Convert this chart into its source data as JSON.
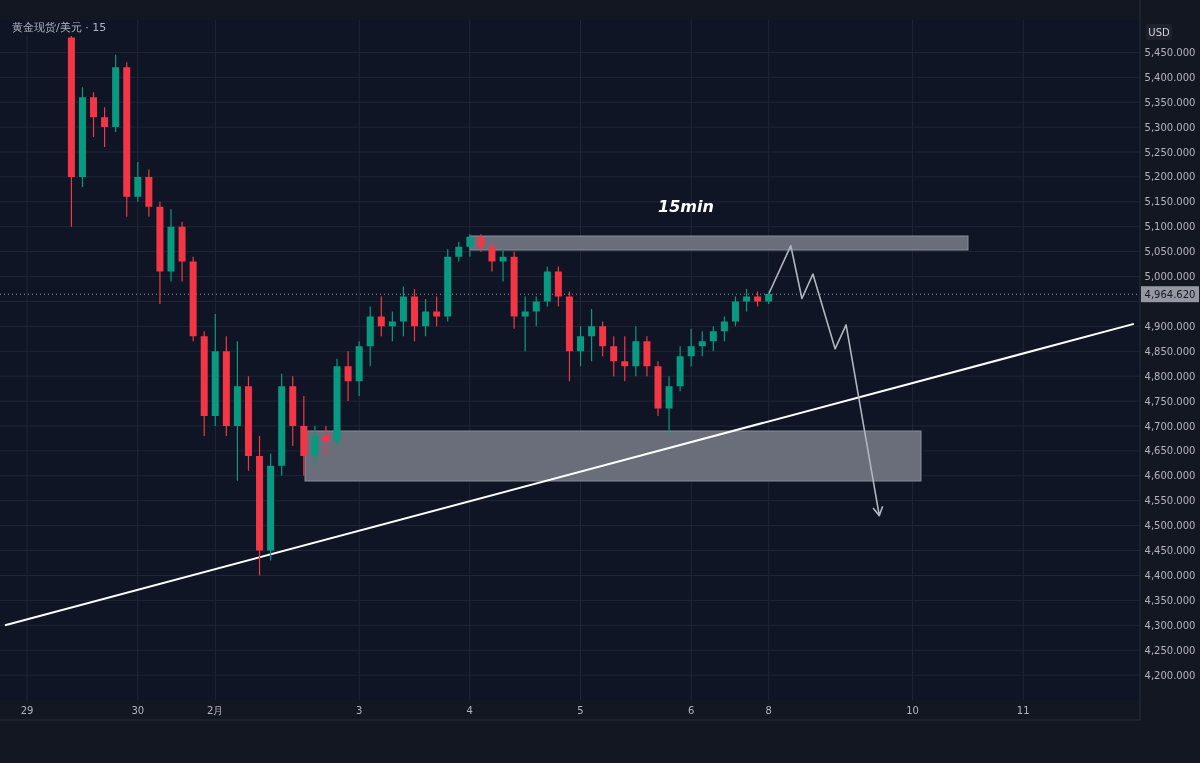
{
  "chart_data": {
    "type": "candlestick",
    "title": "黄金现货/美元 · 15",
    "ylabel": "USD",
    "annotations": [
      "15min"
    ],
    "categories": [
      null,
      null,
      "29",
      null,
      null,
      null,
      null,
      null,
      null,
      null,
      null,
      null,
      "30",
      null,
      null,
      null,
      null,
      null,
      null,
      "2月",
      null,
      null,
      null,
      null,
      null,
      null,
      null,
      null,
      null,
      null,
      null,
      null,
      "3",
      null,
      null,
      null,
      null,
      null,
      null,
      null,
      null,
      null,
      "4",
      null,
      null,
      null,
      null,
      null,
      null,
      null,
      null,
      null,
      "5",
      null,
      null,
      null,
      null,
      null,
      null,
      null,
      null,
      null,
      "6",
      null,
      null,
      null,
      null,
      null,
      null,
      "8",
      null,
      null,
      null,
      null,
      null,
      null,
      null,
      null,
      null,
      null,
      null,
      null,
      "10",
      null,
      null,
      null,
      null,
      null,
      null,
      null,
      null,
      null,
      "11",
      null,
      null,
      null,
      null,
      null,
      null,
      null,
      null,
      null,
      null
    ],
    "ohlc": [
      null,
      null,
      null,
      null,
      null,
      null,
      [
        5480,
        5510,
        5100,
        5200
      ],
      [
        5200,
        5380,
        5180,
        5360
      ],
      [
        5360,
        5370,
        5280,
        5320
      ],
      [
        5320,
        5340,
        5260,
        5300
      ],
      [
        5300,
        5445,
        5290,
        5420
      ],
      [
        5420,
        5430,
        5120,
        5160
      ],
      [
        5160,
        5230,
        5150,
        5200
      ],
      [
        5200,
        5215,
        5120,
        5140
      ],
      [
        5140,
        5150,
        4945,
        5010
      ],
      [
        5010,
        5135,
        4990,
        5100
      ],
      [
        5100,
        5110,
        4990,
        5030
      ],
      [
        5030,
        5040,
        4870,
        4880
      ],
      [
        4880,
        4890,
        4680,
        4720
      ],
      [
        4720,
        4925,
        4700,
        4850
      ],
      [
        4850,
        4880,
        4680,
        4700
      ],
      [
        4700,
        4870,
        4590,
        4780
      ],
      [
        4780,
        4800,
        4610,
        4640
      ],
      [
        4640,
        4680,
        4400,
        4450
      ],
      [
        4450,
        4645,
        4430,
        4620
      ],
      [
        4620,
        4805,
        4600,
        4780
      ],
      [
        4780,
        4800,
        4660,
        4700
      ],
      [
        4700,
        4760,
        4600,
        4640
      ],
      [
        4640,
        4700,
        4620,
        4680
      ],
      [
        4680,
        4700,
        4640,
        4670
      ],
      [
        4670,
        4835,
        4660,
        4820
      ],
      [
        4820,
        4850,
        4750,
        4790
      ],
      [
        4790,
        4870,
        4760,
        4860
      ],
      [
        4860,
        4940,
        4820,
        4920
      ],
      [
        4920,
        4960,
        4880,
        4900
      ],
      [
        4900,
        4930,
        4870,
        4910
      ],
      [
        4910,
        4980,
        4880,
        4960
      ],
      [
        4960,
        4975,
        4870,
        4900
      ],
      [
        4900,
        4955,
        4880,
        4930
      ],
      [
        4930,
        4960,
        4900,
        4920
      ],
      [
        4920,
        5055,
        4910,
        5040
      ],
      [
        5040,
        5070,
        5030,
        5060
      ],
      [
        5060,
        5085,
        5040,
        5080
      ],
      [
        5080,
        5085,
        5050,
        5060
      ],
      [
        5060,
        5070,
        5010,
        5030
      ],
      [
        5030,
        5055,
        4990,
        5040
      ],
      [
        5040,
        5050,
        4895,
        4920
      ],
      [
        4920,
        4960,
        4850,
        4930
      ],
      [
        4930,
        4960,
        4900,
        4950
      ],
      [
        4950,
        5020,
        4940,
        5010
      ],
      [
        5010,
        5020,
        4940,
        4960
      ],
      [
        4960,
        4970,
        4790,
        4850
      ],
      [
        4850,
        4900,
        4820,
        4880
      ],
      [
        4880,
        4935,
        4830,
        4900
      ],
      [
        4900,
        4910,
        4840,
        4860
      ],
      [
        4860,
        4880,
        4800,
        4830
      ],
      [
        4830,
        4880,
        4790,
        4820
      ],
      [
        4820,
        4900,
        4800,
        4870
      ],
      [
        4870,
        4880,
        4800,
        4820
      ],
      [
        4820,
        4830,
        4720,
        4735
      ],
      [
        4735,
        4800,
        4685,
        4780
      ],
      [
        4780,
        4860,
        4770,
        4840
      ],
      [
        4840,
        4895,
        4820,
        4860
      ],
      [
        4860,
        4890,
        4840,
        4870
      ],
      [
        4870,
        4900,
        4850,
        4890
      ],
      [
        4890,
        4920,
        4870,
        4910
      ],
      [
        4910,
        4960,
        4900,
        4950
      ],
      [
        4950,
        4975,
        4930,
        4960
      ],
      [
        4960,
        4970,
        4940,
        4950
      ],
      [
        4950,
        4970,
        4945,
        4965
      ],
      null,
      null,
      null,
      null,
      null,
      null,
      null,
      null,
      null,
      null,
      null,
      null,
      null,
      null,
      null,
      null,
      null,
      null,
      null,
      null,
      null,
      null,
      null,
      null,
      null,
      null,
      null,
      null,
      null,
      null,
      null,
      null,
      null
    ],
    "series": [
      {
        "type": "line",
        "color": "#ffffff",
        "values": [
          4300,
          null,
          null,
          null,
          null,
          null,
          null,
          null,
          null,
          null,
          null,
          null,
          null,
          null,
          null,
          null,
          null,
          null,
          null,
          null,
          null,
          null,
          null,
          null,
          null,
          null,
          null,
          null,
          null,
          null,
          null,
          null,
          null,
          null,
          null,
          null,
          null,
          null,
          null,
          null,
          null,
          null,
          null,
          null,
          null,
          null,
          null,
          null,
          null,
          null,
          null,
          null,
          null,
          null,
          null,
          null,
          null,
          null,
          null,
          null,
          null,
          null,
          null,
          null,
          null,
          null,
          null,
          null,
          null,
          null,
          null,
          null,
          null,
          null,
          null,
          null,
          null,
          null,
          null,
          null,
          null,
          null,
          null,
          null,
          null,
          null,
          null,
          null,
          null,
          null,
          null,
          null,
          null,
          null,
          null,
          null,
          null,
          null,
          null,
          null,
          null,
          null,
          4905
        ]
      },
      {
        "type": "line",
        "color": "#b2b5be",
        "values": [
          null,
          null,
          null,
          null,
          null,
          null,
          null,
          null,
          null,
          null,
          null,
          null,
          null,
          null,
          null,
          null,
          null,
          null,
          null,
          null,
          null,
          null,
          null,
          null,
          null,
          null,
          null,
          null,
          null,
          null,
          null,
          null,
          null,
          null,
          null,
          null,
          null,
          null,
          null,
          null,
          null,
          null,
          null,
          null,
          null,
          null,
          null,
          null,
          null,
          null,
          null,
          null,
          null,
          null,
          null,
          null,
          null,
          null,
          null,
          null,
          null,
          null,
          null,
          null,
          null,
          null,
          null,
          null,
          null,
          4965,
          null,
          5062,
          4956,
          5005,
          null,
          4855,
          4903,
          null,
          null,
          4520,
          null,
          null,
          null,
          null,
          null,
          null,
          null,
          null,
          null,
          null,
          null,
          null,
          null,
          null,
          null,
          null,
          null,
          null,
          null,
          null,
          null,
          null,
          null
        ]
      }
    ],
    "ylim": [
      4150,
      5515
    ],
    "yticks": [
      {
        "value": 4200,
        "label": "4,200.000"
      },
      {
        "value": 4250,
        "label": "4,250.000"
      },
      {
        "value": 4300,
        "label": "4,300.000"
      },
      {
        "value": 4350,
        "label": "4,350.000"
      },
      {
        "value": 4400,
        "label": "4,400.000"
      },
      {
        "value": 4450,
        "label": "4,450.000"
      },
      {
        "value": 4500,
        "label": "4,500.000"
      },
      {
        "value": 4550,
        "label": "4,550.000"
      },
      {
        "value": 4600,
        "label": "4,600.000"
      },
      {
        "value": 4650,
        "label": "4,650.000"
      },
      {
        "value": 4700,
        "label": "4,700.000"
      },
      {
        "value": 4750,
        "label": "4,750.000"
      },
      {
        "value": 4800,
        "label": "4,800.000"
      },
      {
        "value": 4850,
        "label": "4,850.000"
      },
      {
        "value": 4900,
        "label": "4,900.000"
      },
      {
        "value": 4950,
        "label": null
      },
      {
        "value": 5000,
        "label": "5,000.000"
      },
      {
        "value": 5050,
        "label": "5,050.000"
      },
      {
        "value": 5100,
        "label": "5,100.000"
      },
      {
        "value": 5150,
        "label": "5,150.000"
      },
      {
        "value": 5200,
        "label": "5,200.000"
      },
      {
        "value": 5250,
        "label": "5,250.000"
      },
      {
        "value": 5300,
        "label": "5,300.000"
      },
      {
        "value": 5350,
        "label": "5,350.000"
      },
      {
        "value": 5400,
        "label": "5,400.000"
      },
      {
        "value": 5450,
        "label": "5,450.000"
      }
    ],
    "grid": true,
    "ref_lines": [
      {
        "axis": "y",
        "value": 4964.62,
        "label": "4,964.620",
        "color": "#9598a1",
        "line_style": "dotted"
      }
    ]
  }
}
